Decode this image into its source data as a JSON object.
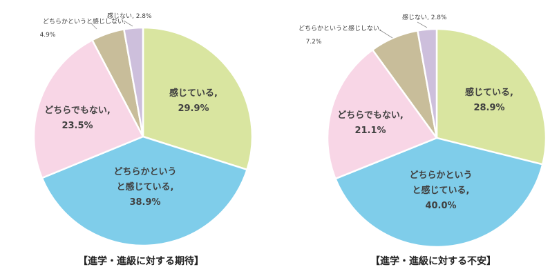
{
  "chart_data": [
    {
      "type": "pie",
      "title": "【進学・進級に対する期待】",
      "slices": [
        {
          "label": "感じている,",
          "value": 29.9,
          "display": "29.9%",
          "color": "#d9e5a0"
        },
        {
          "label": "どちらかというと感じている,",
          "label_lines": [
            "どちらかという",
            "と感じている,"
          ],
          "value": 38.9,
          "display": "38.9%",
          "color": "#7fcdea"
        },
        {
          "label": "どちらでもない,",
          "value": 23.5,
          "display": "23.5%",
          "color": "#f8d6e6"
        },
        {
          "label": "どちらかというと感じしない,",
          "value": 4.9,
          "display": "4.9%",
          "color": "#c8bd9a"
        },
        {
          "label": "感じない,",
          "value": 2.8,
          "display": "2.8%",
          "color": "#cdbfdc"
        }
      ]
    },
    {
      "type": "pie",
      "title": "【進学・進級に対する不安】",
      "slices": [
        {
          "label": "感じている,",
          "value": 28.9,
          "display": "28.9%",
          "color": "#d9e5a0"
        },
        {
          "label": "どちらかというと感じている,",
          "label_lines": [
            "どちらかという",
            "と感じている,"
          ],
          "value": 40.0,
          "display": "40.0%",
          "color": "#7fcdea"
        },
        {
          "label": "どちらでもない,",
          "value": 21.1,
          "display": "21.1%",
          "color": "#f8d6e6"
        },
        {
          "label": "どちらかというと感じしない,",
          "value": 7.2,
          "display": "7.2%",
          "color": "#c8bd9a"
        },
        {
          "label": "感じない,",
          "value": 2.8,
          "display": "2.8%",
          "color": "#cdbfdc"
        }
      ]
    }
  ]
}
